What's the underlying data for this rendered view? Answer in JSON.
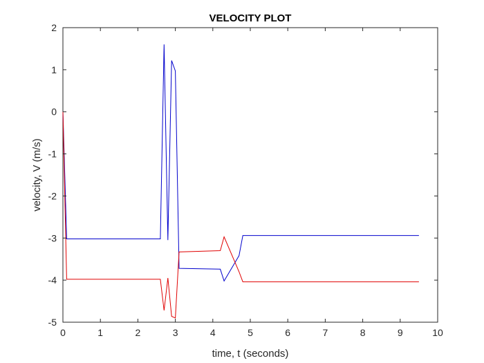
{
  "chart_data": {
    "type": "line",
    "title": "VELOCITY PLOT",
    "xlabel": "time, t (seconds)",
    "ylabel": "velocity, V (m/s)",
    "xlim": [
      0,
      10
    ],
    "ylim": [
      -5,
      2
    ],
    "xticks": [
      0,
      1,
      2,
      3,
      4,
      5,
      6,
      7,
      8,
      9,
      10
    ],
    "yticks": [
      -5,
      -4,
      -3,
      -2,
      -1,
      0,
      1,
      2
    ],
    "grid": false,
    "legend": "none",
    "series": [
      {
        "color": "#0000cc",
        "points": [
          [
            0.0,
            0.0
          ],
          [
            0.1,
            -3.02
          ],
          [
            2.6,
            -3.02
          ],
          [
            2.7,
            1.6
          ],
          [
            2.8,
            -3.05
          ],
          [
            2.9,
            1.22
          ],
          [
            3.0,
            0.97
          ],
          [
            3.1,
            -3.72
          ],
          [
            4.2,
            -3.74
          ],
          [
            4.3,
            -4.02
          ],
          [
            4.7,
            -3.42
          ],
          [
            4.8,
            -2.94
          ],
          [
            9.5,
            -2.94
          ]
        ]
      },
      {
        "color": "#e00000",
        "points": [
          [
            0.0,
            0.0
          ],
          [
            0.1,
            -3.98
          ],
          [
            2.6,
            -3.98
          ],
          [
            2.7,
            -4.72
          ],
          [
            2.8,
            -3.95
          ],
          [
            2.9,
            -4.86
          ],
          [
            3.0,
            -4.9
          ],
          [
            3.1,
            -3.33
          ],
          [
            4.2,
            -3.3
          ],
          [
            4.3,
            -2.97
          ],
          [
            4.7,
            -3.8
          ],
          [
            4.8,
            -4.04
          ],
          [
            9.5,
            -4.04
          ]
        ]
      }
    ]
  }
}
